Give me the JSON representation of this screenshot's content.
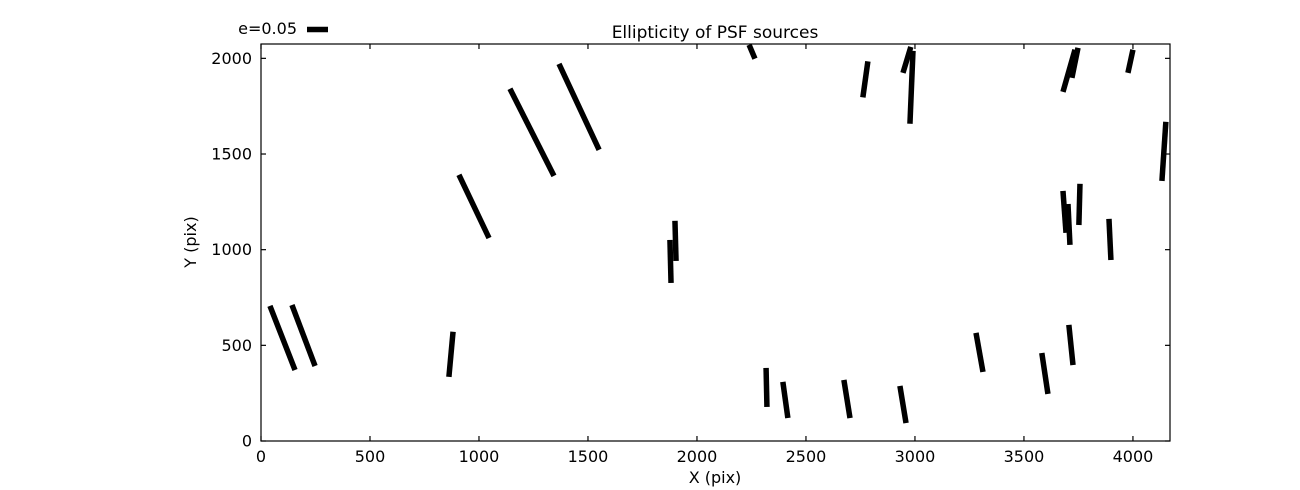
{
  "figure": {
    "title": "Ellipticity of PSF sources",
    "xlabel": "X (pix)",
    "ylabel": "Y (pix)",
    "legend_label": "e=0.05",
    "background_color": "#ffffff",
    "stick_color": "#000000",
    "spine_color": "#000000"
  },
  "chart_data": {
    "type": "scatter",
    "title": "Ellipticity of PSF sources",
    "xlabel": "X (pix)",
    "ylabel": "Y (pix)",
    "xlim": [
      0,
      4170
    ],
    "ylim": [
      0,
      2075
    ],
    "xticks": [
      0,
      500,
      1000,
      1500,
      2000,
      2500,
      3000,
      3500,
      4000
    ],
    "yticks": [
      0,
      500,
      1000,
      1500,
      2000
    ],
    "grid": false,
    "legend": {
      "label": "e=0.05",
      "position": "upper-left-outside"
    },
    "marker": "ellipticity-stick-line-segment",
    "stick_color": "#000000",
    "stick_stroke_px": 5.5,
    "segments_format": [
      "x1",
      "y1",
      "x2",
      "y2"
    ],
    "segments": [
      [
        41,
        706,
        156,
        371
      ],
      [
        142,
        711,
        248,
        392
      ],
      [
        862,
        335,
        881,
        571
      ],
      [
        908,
        1391,
        1046,
        1061
      ],
      [
        1142,
        1841,
        1344,
        1386
      ],
      [
        1367,
        1971,
        1551,
        1522
      ],
      [
        1899,
        1151,
        1904,
        941
      ],
      [
        1876,
        1051,
        1881,
        826
      ],
      [
        2239,
        2071,
        2266,
        1998
      ],
      [
        2317,
        382,
        2321,
        178
      ],
      [
        2394,
        309,
        2417,
        120
      ],
      [
        2674,
        319,
        2702,
        120
      ],
      [
        2931,
        288,
        2959,
        94
      ],
      [
        2761,
        1796,
        2784,
        1984
      ],
      [
        2945,
        1924,
        2981,
        2060
      ],
      [
        2977,
        1658,
        2991,
        2039
      ],
      [
        3280,
        565,
        3312,
        361
      ],
      [
        3582,
        460,
        3610,
        246
      ],
      [
        3706,
        607,
        3725,
        397
      ],
      [
        3679,
        1307,
        3693,
        1088
      ],
      [
        3702,
        1239,
        3711,
        1025
      ],
      [
        3752,
        1129,
        3757,
        1344
      ],
      [
        3890,
        1161,
        3899,
        946
      ],
      [
        3679,
        1825,
        3734,
        2045
      ],
      [
        3720,
        1898,
        3748,
        2055
      ],
      [
        3977,
        1924,
        4000,
        2045
      ],
      [
        4133,
        1359,
        4151,
        1668
      ]
    ]
  }
}
